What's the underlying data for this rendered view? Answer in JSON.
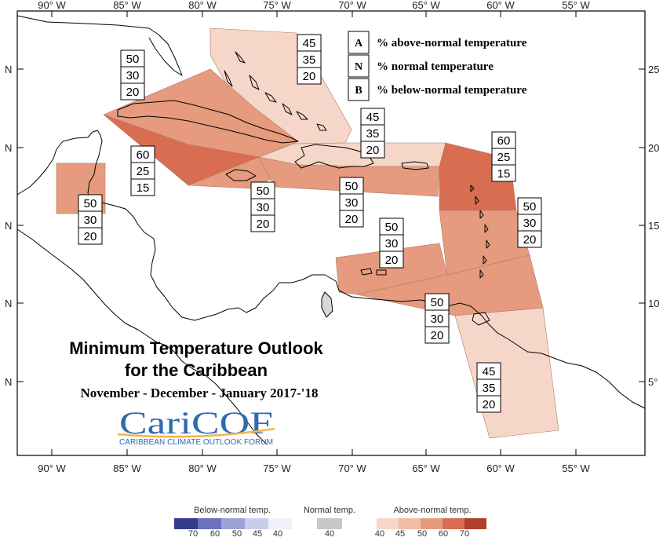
{
  "map": {
    "lon_ticks": [
      "90° W",
      "85° W",
      "80° W",
      "75° W",
      "70° W",
      "65° W",
      "60° W",
      "55° W"
    ],
    "lat_left_ticks": [
      "N",
      "N",
      "N",
      "N",
      "N"
    ],
    "lat_right_ticks": [
      "25",
      "20",
      "15",
      "10",
      "5°"
    ],
    "colors": {
      "above_40": "#f6d6c8",
      "above_45": "#f2bda7",
      "above_50": "#e69a7e",
      "above_60": "#d96d52",
      "above_70": "#b0402c",
      "normal": "#c8c8c8",
      "below_40": "#eef0fa",
      "below_45": "#c9cdea",
      "below_50": "#9ca3d6",
      "below_60": "#6a72bb",
      "below_70": "#353c8e",
      "coast": "#000000"
    }
  },
  "legend": {
    "items": [
      {
        "letter": "A",
        "text": "% above-normal temperature"
      },
      {
        "letter": "N",
        "text": "% normal temperature"
      },
      {
        "letter": "B",
        "text": "% below-normal temperature"
      }
    ]
  },
  "forecast_boxes": [
    {
      "region": "bahamas",
      "values": [
        "45",
        "35",
        "20"
      ]
    },
    {
      "region": "gulf-cuba",
      "values": [
        "50",
        "30",
        "20"
      ]
    },
    {
      "region": "central-cuba-jamaica",
      "values": [
        "60",
        "25",
        "15"
      ]
    },
    {
      "region": "hispaniola-north",
      "values": [
        "45",
        "35",
        "20"
      ]
    },
    {
      "region": "leeward-islands",
      "values": [
        "60",
        "25",
        "15"
      ]
    },
    {
      "region": "belize",
      "values": [
        "50",
        "30",
        "20"
      ]
    },
    {
      "region": "jamaica-south",
      "values": [
        "50",
        "30",
        "20"
      ]
    },
    {
      "region": "puerto-rico-south",
      "values": [
        "50",
        "30",
        "20"
      ]
    },
    {
      "region": "windward-islands",
      "values": [
        "50",
        "30",
        "20"
      ]
    },
    {
      "region": "abc-islands",
      "values": [
        "50",
        "30",
        "20"
      ]
    },
    {
      "region": "trinidad",
      "values": [
        "50",
        "30",
        "20"
      ]
    },
    {
      "region": "guianas",
      "values": [
        "45",
        "35",
        "20"
      ]
    }
  ],
  "title": {
    "line1": "Minimum Temperature Outlook",
    "line2": "for the Caribbean",
    "period": "November - December - January 2017-'18"
  },
  "logo": {
    "name": "CariCOF",
    "subtitle": "CARIBBEAN CLIMATE OUTLOOK FORUM"
  },
  "color_scale": {
    "below": {
      "label": "Below-normal temp.",
      "ticks": [
        "70",
        "60",
        "50",
        "45",
        "40"
      ]
    },
    "normal": {
      "label": "Normal temp.",
      "ticks": [
        "40"
      ]
    },
    "above": {
      "label": "Above-normal temp.",
      "ticks": [
        "40",
        "45",
        "50",
        "60",
        "70"
      ]
    }
  }
}
